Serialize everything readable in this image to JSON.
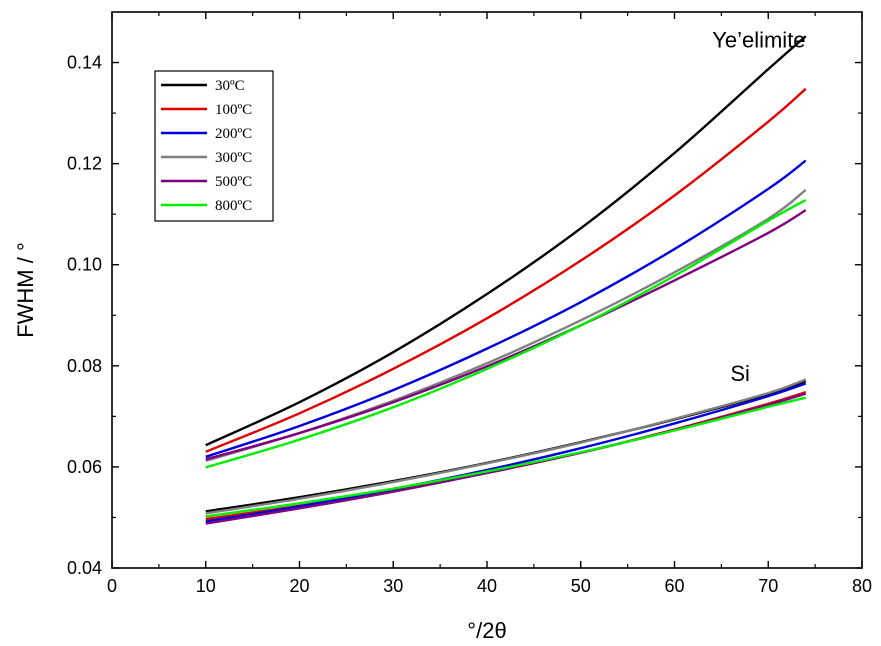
{
  "chart_data": {
    "type": "line",
    "title": "",
    "xlabel": "°/2θ",
    "ylabel": "FWHM / °",
    "xlim": [
      0,
      80
    ],
    "ylim": [
      0.04,
      0.15
    ],
    "xticks": [
      0,
      10,
      20,
      30,
      40,
      50,
      60,
      70,
      80
    ],
    "yticks": [
      0.04,
      0.06,
      0.08,
      0.1,
      0.12,
      0.14
    ],
    "ytick_labels": [
      "0.04",
      "0.06",
      "0.08",
      "0.10",
      "0.12",
      "0.14"
    ],
    "grid": false,
    "legend_position": "top-left",
    "annotations": [
      {
        "text": "Ye’elimite",
        "x": 69,
        "y": 0.143
      },
      {
        "text": "Si",
        "x": 67,
        "y": 0.077
      }
    ],
    "x": [
      10,
      20,
      30,
      40,
      50,
      60,
      70,
      74
    ],
    "series": [
      {
        "name": "30ºC",
        "color": "#000000",
        "group": "Ye’elimite",
        "values": [
          0.0643,
          0.0728,
          0.0827,
          0.0942,
          0.1072,
          0.1221,
          0.1387,
          0.1452
        ]
      },
      {
        "name": "100ºC",
        "color": "#e00000",
        "group": "Ye’elimite",
        "values": [
          0.063,
          0.0706,
          0.0794,
          0.0894,
          0.1008,
          0.1137,
          0.1283,
          0.1348
        ]
      },
      {
        "name": "200ºC",
        "color": "#0000dd",
        "group": "Ye’elimite",
        "values": [
          0.062,
          0.0681,
          0.0752,
          0.0834,
          0.0926,
          0.1031,
          0.115,
          0.1206
        ]
      },
      {
        "name": "300ºC",
        "color": "#808080",
        "group": "Ye’elimite",
        "values": [
          0.0612,
          0.0667,
          0.0731,
          0.0805,
          0.089,
          0.0985,
          0.1091,
          0.1148
        ]
      },
      {
        "name": "500ºC",
        "color": "#800080",
        "group": "Ye’elimite",
        "values": [
          0.0615,
          0.0667,
          0.0728,
          0.0799,
          0.088,
          0.0969,
          0.1063,
          0.1108
        ]
      },
      {
        "name": "800ºC",
        "color": "#00ee00",
        "group": "Ye’elimite",
        "values": [
          0.0599,
          0.0654,
          0.0718,
          0.0794,
          0.088,
          0.0978,
          0.1087,
          0.1128
        ]
      },
      {
        "name": "30ºC",
        "color": "#000000",
        "group": "Si",
        "values": [
          0.0512,
          0.054,
          0.0572,
          0.0608,
          0.0649,
          0.0694,
          0.0744,
          0.077
        ]
      },
      {
        "name": "100ºC",
        "color": "#e00000",
        "group": "Si",
        "values": [
          0.0497,
          0.0523,
          0.0553,
          0.0588,
          0.0628,
          0.0674,
          0.0725,
          0.0748
        ]
      },
      {
        "name": "200ºC",
        "color": "#0000dd",
        "group": "Si",
        "values": [
          0.0492,
          0.0522,
          0.0556,
          0.0594,
          0.0637,
          0.0686,
          0.074,
          0.0765
        ]
      },
      {
        "name": "300ºC",
        "color": "#808080",
        "group": "Si",
        "values": [
          0.0508,
          0.0537,
          0.057,
          0.0607,
          0.0648,
          0.0695,
          0.0746,
          0.0773
        ]
      },
      {
        "name": "500ºC",
        "color": "#800080",
        "group": "Si",
        "values": [
          0.0488,
          0.0518,
          0.0551,
          0.0588,
          0.0628,
          0.0673,
          0.0723,
          0.0745
        ]
      },
      {
        "name": "800ºC",
        "color": "#00ee00",
        "group": "Si",
        "values": [
          0.0502,
          0.0528,
          0.0557,
          0.0591,
          0.0629,
          0.0672,
          0.0719,
          0.0737
        ]
      }
    ]
  }
}
